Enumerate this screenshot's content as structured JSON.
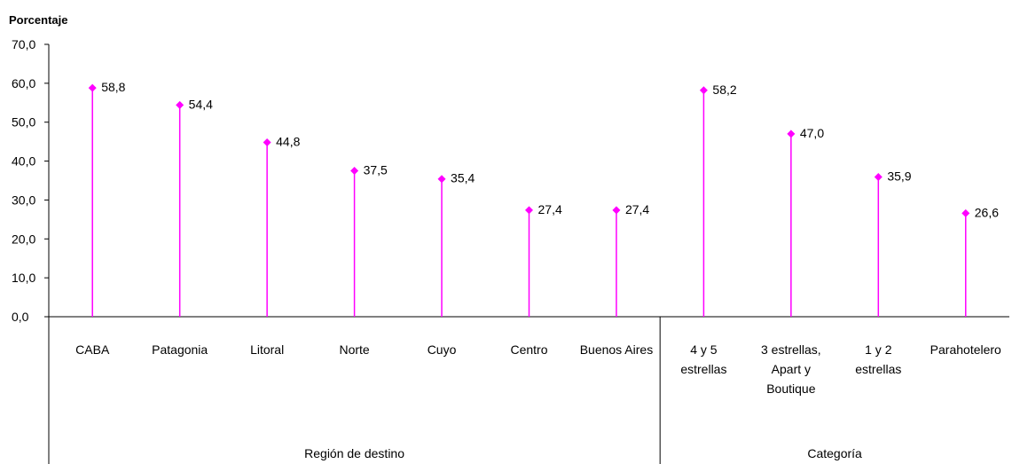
{
  "chart_data": {
    "type": "lollipop",
    "ylabel": "Porcentaje",
    "ylim": [
      0,
      70
    ],
    "yticks": [
      "0,0",
      "10,0",
      "20,0",
      "30,0",
      "40,0",
      "50,0",
      "60,0",
      "70,0"
    ],
    "grid": false,
    "categories": [
      {
        "label": [
          "CABA"
        ],
        "group": "Región de destino"
      },
      {
        "label": [
          "Patagonia"
        ],
        "group": "Región de destino"
      },
      {
        "label": [
          "Litoral"
        ],
        "group": "Región de destino"
      },
      {
        "label": [
          "Norte"
        ],
        "group": "Región de destino"
      },
      {
        "label": [
          "Cuyo"
        ],
        "group": "Región de destino"
      },
      {
        "label": [
          "Centro"
        ],
        "group": "Región de destino"
      },
      {
        "label": [
          "Buenos Aires"
        ],
        "group": "Región de destino"
      },
      {
        "label": [
          "4 y 5",
          "estrellas"
        ],
        "group": "Categoría"
      },
      {
        "label": [
          "3 estrellas,",
          "Apart y",
          "Boutique"
        ],
        "group": "Categoría"
      },
      {
        "label": [
          "1 y 2",
          "estrellas"
        ],
        "group": "Categoría"
      },
      {
        "label": [
          "Parahotelero"
        ],
        "group": "Categoría"
      }
    ],
    "values": [
      58.8,
      54.4,
      44.8,
      37.5,
      35.4,
      27.4,
      27.4,
      58.2,
      47.0,
      35.9,
      26.6
    ],
    "value_labels": [
      "58,8",
      "54,4",
      "44,8",
      "37,5",
      "35,4",
      "27,4",
      "27,4",
      "58,2",
      "47,0",
      "35,9",
      "26,6"
    ],
    "groups": [
      "Región de destino",
      "Categoría"
    ],
    "color": "#ff00ff"
  }
}
